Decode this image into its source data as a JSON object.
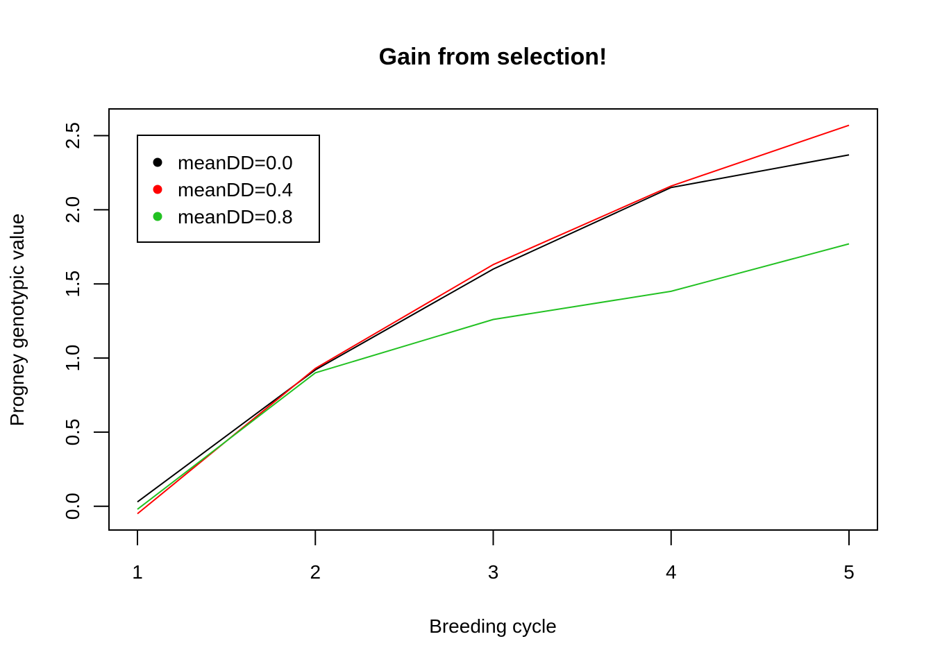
{
  "chart_data": {
    "type": "line",
    "title": "Gain from selection!",
    "xlabel": "Breeding cycle",
    "ylabel": "Progney genotypic value",
    "x": [
      1,
      2,
      3,
      4,
      5
    ],
    "xticks": [
      "1",
      "2",
      "3",
      "4",
      "5"
    ],
    "yticks": [
      "0.0",
      "0.5",
      "1.0",
      "1.5",
      "2.0",
      "2.5"
    ],
    "xlim": [
      0.84,
      5.16
    ],
    "ylim": [
      -0.16,
      2.68
    ],
    "grid": false,
    "legend_position": "top-left",
    "series": [
      {
        "name": "meanDD=0.0",
        "color": "#000000",
        "values": [
          0.03,
          0.92,
          1.6,
          2.15,
          2.37
        ]
      },
      {
        "name": "meanDD=0.4",
        "color": "#ff0000",
        "values": [
          -0.05,
          0.93,
          1.63,
          2.16,
          2.57
        ]
      },
      {
        "name": "meanDD=0.8",
        "color": "#22c122",
        "values": [
          -0.02,
          0.9,
          1.26,
          1.45,
          1.77
        ]
      }
    ]
  }
}
